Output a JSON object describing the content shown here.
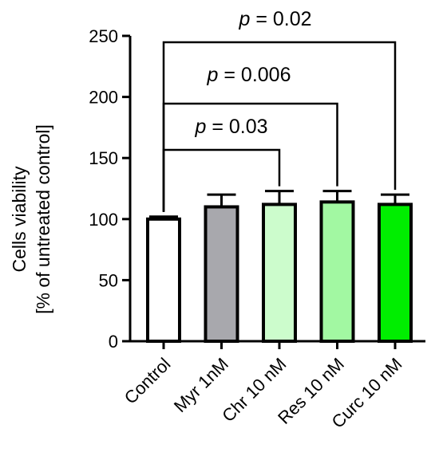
{
  "chart_data": {
    "type": "bar",
    "title": "",
    "xlabel": "",
    "ylabel": [
      "Cells viability",
      "[% of untreated control]"
    ],
    "ylim": [
      0,
      250
    ],
    "yticks": [
      0,
      50,
      100,
      150,
      200,
      250
    ],
    "categories": [
      "Control",
      "Myr 1nM",
      "Chr 10 nM",
      "Res 10 nM",
      "Curc 10 nM"
    ],
    "values": [
      100,
      110,
      112,
      114,
      112
    ],
    "errors": [
      2,
      10,
      11,
      9,
      8
    ],
    "colors": [
      "#ffffff",
      "#a8a8ad",
      "#ccfccc",
      "#a2f8a2",
      "#00ee00"
    ],
    "comparisons": [
      {
        "from": 0,
        "to": 2,
        "p_symbol": "p",
        "p_value": "= 0.03"
      },
      {
        "from": 0,
        "to": 3,
        "p_symbol": "p",
        "p_value": "= 0.006"
      },
      {
        "from": 0,
        "to": 4,
        "p_symbol": "p",
        "p_value": "= 0.02"
      }
    ],
    "grid": false,
    "legend": "none"
  }
}
